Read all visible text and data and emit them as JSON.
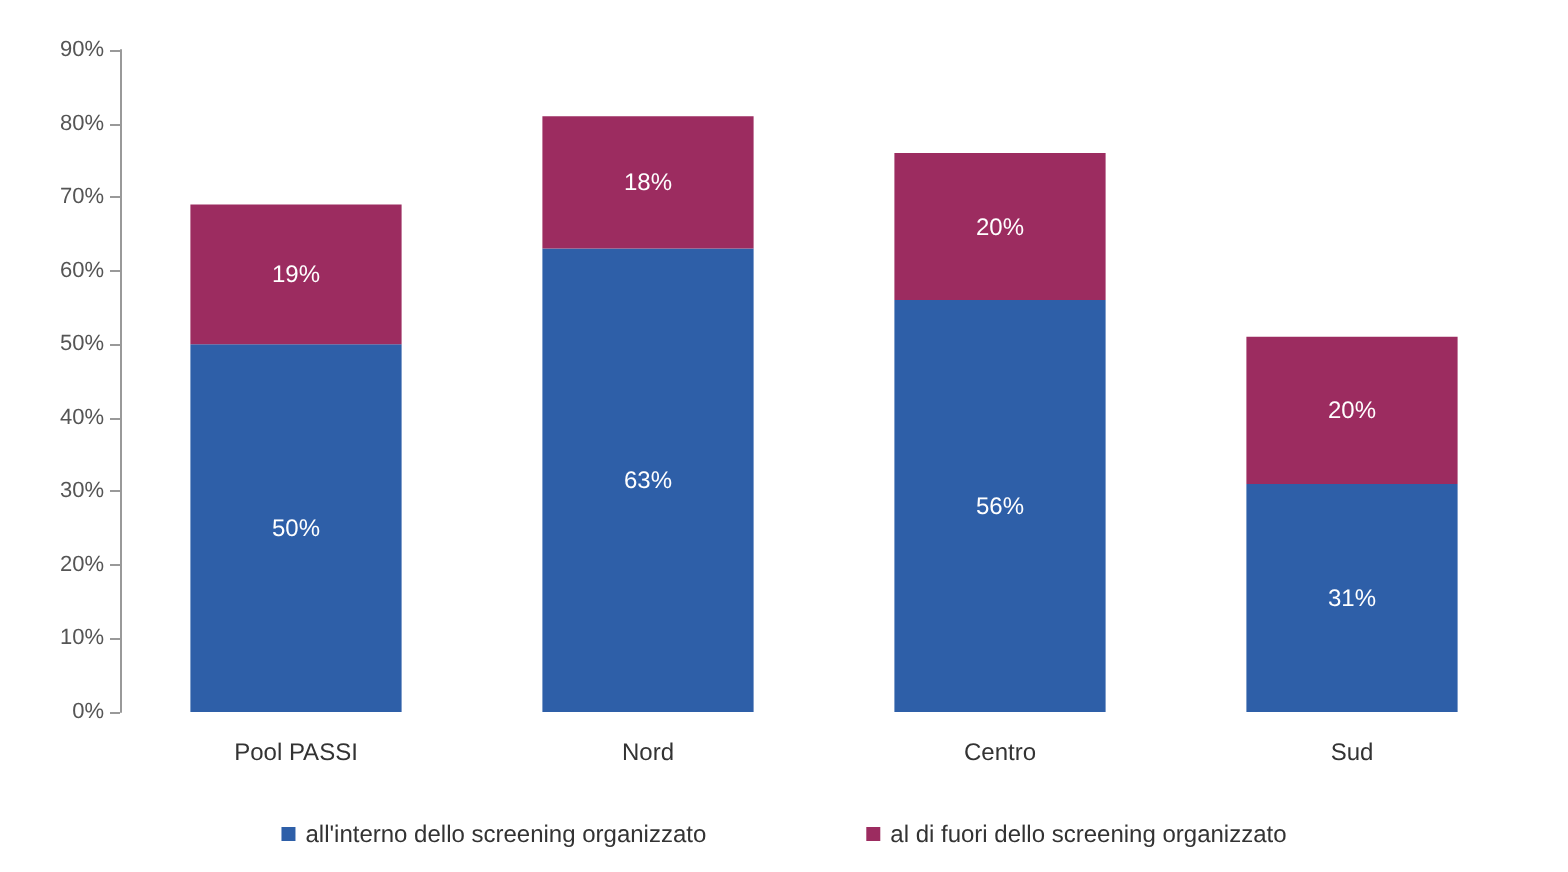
{
  "chart_data": {
    "type": "bar",
    "stacked": true,
    "categories": [
      "Pool PASSI",
      "Nord",
      "Centro",
      "Sud"
    ],
    "series": [
      {
        "name": "all'interno dello screening organizzato",
        "color": "#2e5fa8",
        "values": [
          50,
          63,
          56,
          31
        ],
        "value_labels": [
          "50%",
          "63%",
          "56%",
          "31%"
        ]
      },
      {
        "name": "al di fuori dello screening organizzato",
        "color": "#9c2c60",
        "values": [
          19,
          18,
          20,
          20
        ],
        "value_labels": [
          "19%",
          "18%",
          "20%",
          "20%"
        ]
      }
    ],
    "ylim": [
      0,
      90
    ],
    "yticks": [
      {
        "value": 0,
        "label": "0%"
      },
      {
        "value": 10,
        "label": "10%"
      },
      {
        "value": 20,
        "label": "20%"
      },
      {
        "value": 30,
        "label": "30%"
      },
      {
        "value": 40,
        "label": "40%"
      },
      {
        "value": 50,
        "label": "50%"
      },
      {
        "value": 60,
        "label": "60%"
      },
      {
        "value": 70,
        "label": "70%"
      },
      {
        "value": 80,
        "label": "80%"
      },
      {
        "value": 90,
        "label": "90%"
      }
    ],
    "grid": false,
    "legend": "bottom"
  }
}
